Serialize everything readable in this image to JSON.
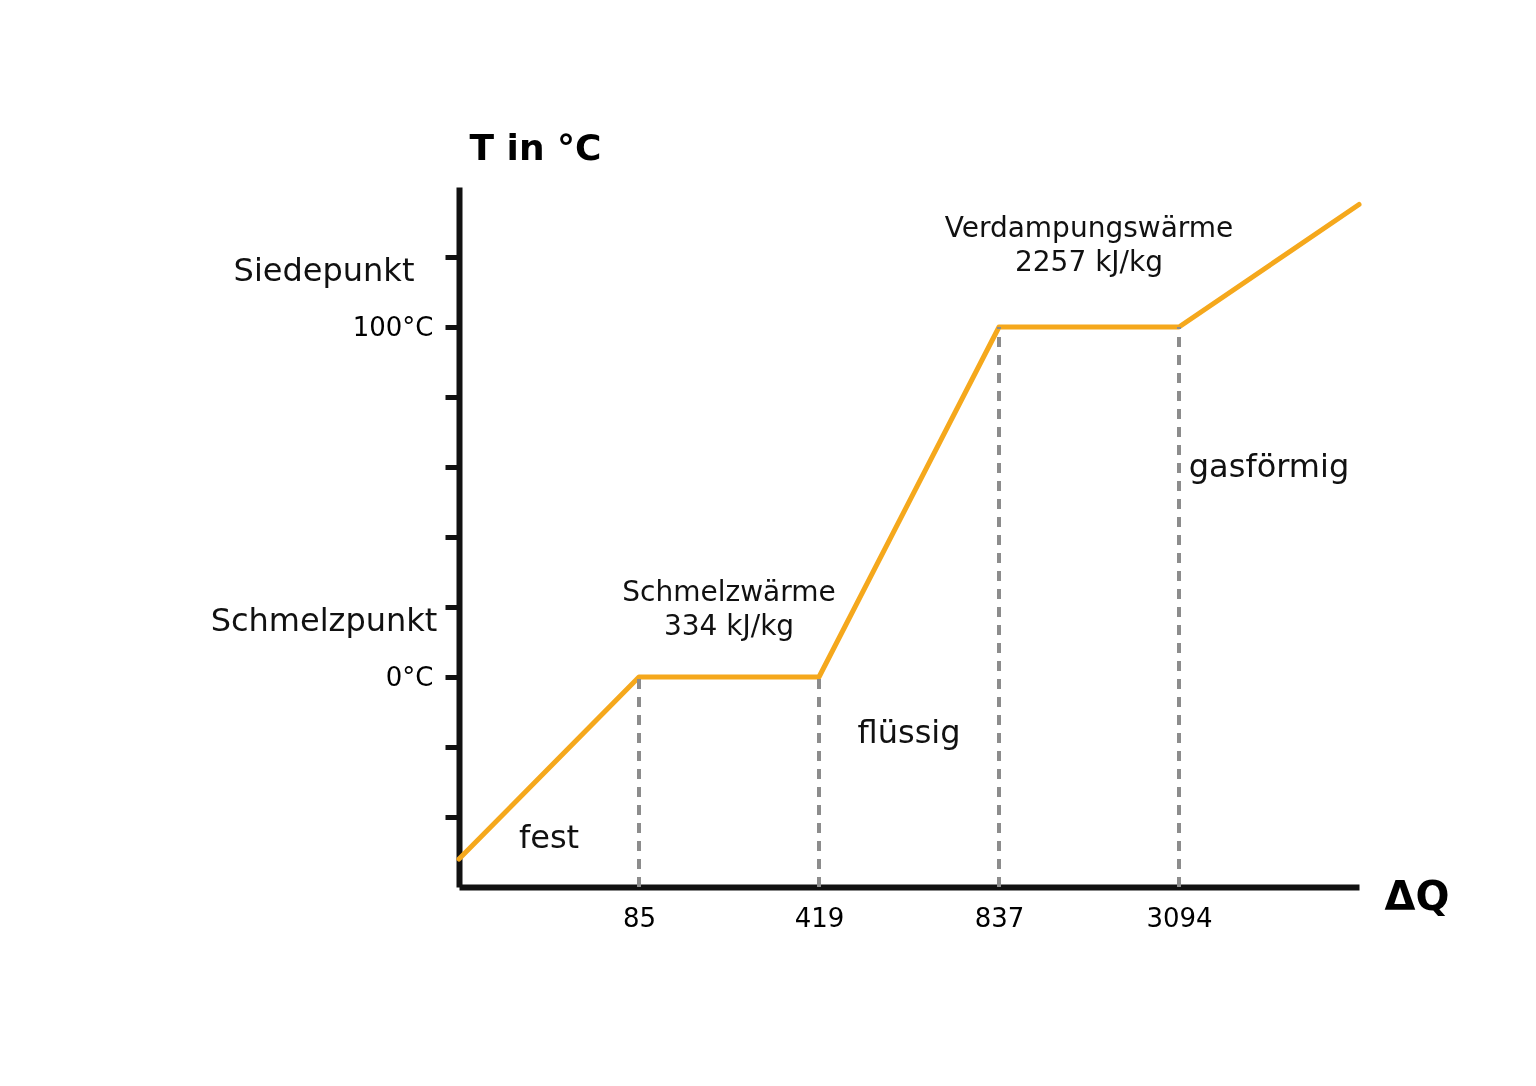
{
  "chart_data": {
    "type": "line",
    "xlabel": "ΔQ",
    "ylabel": "T in °C",
    "categories": [
      null,
      "85",
      "419",
      "837",
      "3094",
      null
    ],
    "series": [
      {
        "color": "#f5a81c",
        "values": [
          -52,
          0,
          0,
          100,
          100,
          135
        ]
      }
    ],
    "ylim": [
      -60,
      140
    ],
    "yticks": [
      {
        "value": -40,
        "label": null
      },
      {
        "value": -20,
        "label": null
      },
      {
        "value": 0,
        "label": "0°C"
      },
      {
        "value": 20,
        "label": null
      },
      {
        "value": 40,
        "label": null
      },
      {
        "value": 60,
        "label": null
      },
      {
        "value": 80,
        "label": null
      },
      {
        "value": 100,
        "label": "100°C"
      },
      {
        "value": 120,
        "label": null
      }
    ],
    "ref_lines": [
      {
        "axis": "x",
        "value": "85",
        "color": "#8c8c8c",
        "line_style": "dashed"
      },
      {
        "axis": "x",
        "value": "419",
        "color": "#8c8c8c",
        "line_style": "dashed"
      },
      {
        "axis": "x",
        "value": "837",
        "color": "#8c8c8c",
        "line_style": "dashed"
      },
      {
        "axis": "x",
        "value": "3094",
        "color": "#8c8c8c",
        "line_style": "dashed"
      }
    ],
    "annotations": [
      "Schmelzwärme 334 kJ/kg",
      "Verdampungswärme 2257 kJ/kg",
      "fest",
      "flüssig",
      "gasförmig",
      "Siedepunkt",
      "Schmelzpunkt"
    ],
    "grid": false
  }
}
